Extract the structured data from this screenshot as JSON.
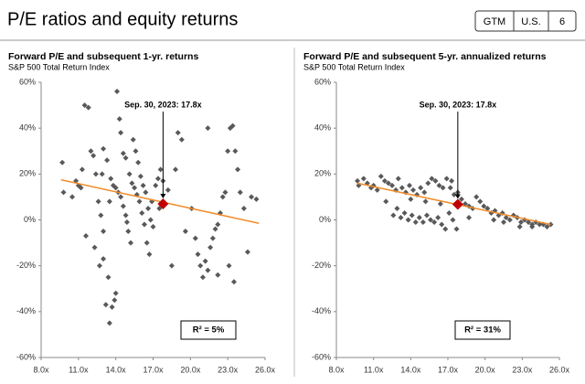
{
  "header": {
    "title": "P/E ratios and equity returns",
    "tags": [
      "GTM",
      "U.S.",
      "6"
    ]
  },
  "chart_data": [
    {
      "type": "scatter",
      "title": "Forward P/E and subsequent 1-yr. returns",
      "subtitle": "S&P 500 Total Return Index",
      "color": "#595959",
      "x": [
        9.7,
        9.8,
        10.5,
        10.8,
        11,
        11.3,
        11.5,
        11.8,
        11.6,
        12,
        12.2,
        12.4,
        12.6,
        12.7,
        12.8,
        13,
        13.2,
        13.4,
        13.5,
        13.7,
        13.9,
        14,
        14.1,
        14.3,
        14.4,
        14.6,
        14.8,
        13,
        13.3,
        13.6,
        13.8,
        14,
        14.2,
        14.4,
        14.6,
        14.8,
        15,
        15.2,
        15.1,
        15.3,
        15.5,
        15.7,
        15.9,
        16.1,
        16.3,
        16.5,
        16.7,
        15.4,
        15.6,
        15.8,
        16,
        16.2,
        16.4,
        16.6,
        16.8,
        17,
        17.2,
        17.4,
        17.6,
        17.8,
        18.2,
        18.5,
        18.8,
        19,
        19.3,
        19.6,
        20.1,
        20.4,
        20.6,
        20.8,
        21,
        21.2,
        21.4,
        21.6,
        21.8,
        22,
        22.2,
        22.4,
        22.6,
        22.8,
        23,
        23.2,
        23.4,
        23.6,
        23.8,
        24,
        24.3,
        24.6,
        24.9,
        25.3,
        23.1,
        23.5,
        22.2,
        21.4,
        12.9,
        11.2,
        13.5,
        14.9,
        16.9,
        17.5,
        12.3,
        13
      ],
      "values": [
        25,
        12,
        10,
        17,
        15,
        22,
        50,
        49,
        -7,
        30,
        28,
        20,
        8,
        -20,
        2,
        -17,
        -37,
        -25,
        -45,
        -38,
        -35,
        -32,
        56,
        44,
        38,
        29,
        27,
        31,
        26,
        18,
        15,
        14,
        12,
        10,
        6,
        2,
        -5,
        -10,
        20,
        16,
        14,
        11,
        8,
        3,
        -2,
        -10,
        -15,
        35,
        30,
        25,
        19,
        15,
        12,
        5,
        0,
        -3,
        15,
        18,
        22,
        17,
        13,
        -20,
        22,
        38,
        35,
        -5,
        5,
        -8,
        -15,
        -20,
        -25,
        -18,
        -22,
        -12,
        -8,
        -4,
        -2,
        3,
        10,
        12,
        30,
        40,
        41,
        30,
        22,
        12,
        5,
        -14,
        10,
        9,
        -20,
        -27,
        -24,
        40,
        20,
        14,
        8,
        -1,
        8,
        5,
        -12,
        -5
      ],
      "highlight": {
        "x": 17.8,
        "value": 7,
        "color": "#c00000"
      },
      "trendline": {
        "x": [
          9.6,
          25.5
        ],
        "values": [
          17.5,
          -1.5
        ],
        "color": "#f28c28"
      },
      "annotation": "Sep. 30, 2023: 17.8x",
      "r_squared_label": "R² = 5%",
      "xlim": [
        8,
        26
      ],
      "xticks": [
        {
          "value": 8,
          "label": "8.0x"
        },
        {
          "value": 11,
          "label": "11.0x"
        },
        {
          "value": 14,
          "label": "14.0x"
        },
        {
          "value": 17,
          "label": "17.0x"
        },
        {
          "value": 20,
          "label": "20.0x"
        },
        {
          "value": 23,
          "label": "23.0x"
        },
        {
          "value": 26,
          "label": "26.0x"
        }
      ],
      "ylim": [
        -60,
        60
      ],
      "yticks": [
        {
          "value": -60,
          "label": "-60%"
        },
        {
          "value": -40,
          "label": "-40%"
        },
        {
          "value": -20,
          "label": "-20%"
        },
        {
          "value": 0,
          "label": "0%"
        },
        {
          "value": 20,
          "label": "20%"
        },
        {
          "value": 40,
          "label": "40%"
        },
        {
          "value": 60,
          "label": "60%"
        }
      ]
    },
    {
      "type": "scatter",
      "title": "Forward P/E and subsequent 5-yr. annualized returns",
      "subtitle": "S&P 500 Total Return Index",
      "color": "#595959",
      "x": [
        9.7,
        9.8,
        10.2,
        10.5,
        10.8,
        11,
        11.3,
        11.6,
        11.9,
        12.2,
        12.5,
        12.8,
        13,
        13.3,
        13.6,
        13.9,
        14.2,
        14.5,
        14.8,
        15.1,
        15.4,
        15.7,
        16,
        16.3,
        16.6,
        16.9,
        17.2,
        17.5,
        17.8,
        18.1,
        18.4,
        18.7,
        19,
        19.3,
        19.6,
        19.9,
        20.2,
        20.5,
        20.8,
        21.1,
        21.4,
        21.7,
        22,
        22.3,
        22.6,
        22.9,
        23.2,
        23.5,
        23.8,
        24.1,
        24.4,
        24.7,
        25,
        25.3,
        12.6,
        12.9,
        13.2,
        13.5,
        13.8,
        14.1,
        14.4,
        14.7,
        15,
        15.3,
        15.6,
        15.9,
        16.2,
        16.5,
        16.8,
        17.1,
        17.4,
        17.7,
        16.4,
        15.2,
        14,
        12,
        20.7,
        21.5,
        22.8,
        23.8,
        18.7,
        17.3
      ],
      "values": [
        17,
        15,
        18,
        16,
        14,
        15,
        13,
        19,
        17,
        16,
        15,
        13,
        18,
        14,
        12,
        15,
        13,
        11,
        14,
        12,
        16,
        18,
        17,
        15,
        14,
        18,
        14,
        11,
        12,
        9,
        7,
        6,
        5,
        10,
        8,
        6,
        5,
        3,
        4,
        2,
        3,
        1,
        0,
        2,
        1,
        -1,
        0,
        -1,
        -2,
        -1,
        -2,
        -2,
        -3,
        -2,
        2,
        5,
        1,
        3,
        0,
        2,
        -1,
        1,
        -1,
        2,
        0,
        -1,
        1,
        -2,
        -4,
        3,
        0,
        -4,
        7,
        8,
        9,
        8,
        0,
        -1,
        -3,
        -3,
        1,
        17
      ],
      "highlight": {
        "x": 17.8,
        "value": 6.8,
        "color": "#c00000"
      },
      "trendline": {
        "x": [
          9.7,
          25.3
        ],
        "values": [
          16,
          -2
        ],
        "color": "#f28c28"
      },
      "annotation": "Sep. 30, 2023: 17.8x",
      "r_squared_label": "R² = 31%",
      "xlim": [
        8,
        26
      ],
      "xticks": [
        {
          "value": 8,
          "label": "8.0x"
        },
        {
          "value": 11,
          "label": "11.0x"
        },
        {
          "value": 14,
          "label": "14.0x"
        },
        {
          "value": 17,
          "label": "17.0x"
        },
        {
          "value": 20,
          "label": "20.0x"
        },
        {
          "value": 23,
          "label": "23.0x"
        },
        {
          "value": 26,
          "label": "26.0x"
        }
      ],
      "ylim": [
        -60,
        60
      ],
      "yticks": [
        {
          "value": -60,
          "label": "-60%"
        },
        {
          "value": -40,
          "label": "-40%"
        },
        {
          "value": -20,
          "label": "-20%"
        },
        {
          "value": 0,
          "label": "0%"
        },
        {
          "value": 20,
          "label": "20%"
        },
        {
          "value": 40,
          "label": "40%"
        },
        {
          "value": 60,
          "label": "60%"
        }
      ]
    }
  ]
}
